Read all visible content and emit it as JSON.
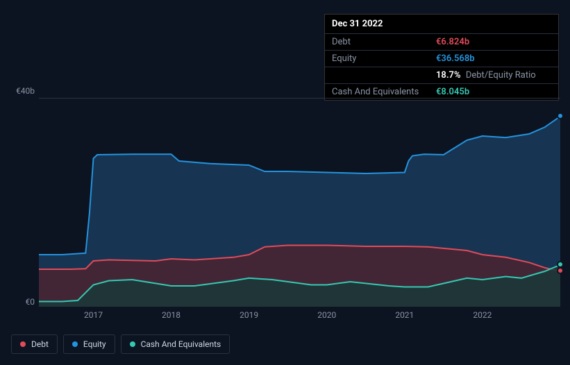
{
  "tooltip": {
    "date": "Dec 31 2022",
    "rows": [
      {
        "label": "Debt",
        "value": "€6.824b",
        "color": "#e24b5a"
      },
      {
        "label": "Equity",
        "value": "€36.568b",
        "color": "#2394df"
      },
      {
        "label": "",
        "value": "18.7%",
        "suffix": "Debt/Equity Ratio",
        "color": "#ffffff"
      },
      {
        "label": "Cash And Equivalents",
        "value": "€8.045b",
        "color": "#35c9b3"
      }
    ]
  },
  "chart": {
    "type": "area",
    "background": "#0d1421",
    "grid_color": "#2a3040",
    "text_color": "#8a94a6",
    "ylim": [
      0,
      40
    ],
    "y_ticks": [
      {
        "v": 40,
        "label": "€40b"
      },
      {
        "v": 0,
        "label": "€0"
      }
    ],
    "x_domain": [
      2016.3,
      2023.0
    ],
    "x_ticks": [
      2017,
      2018,
      2019,
      2020,
      2021,
      2022
    ],
    "series": [
      {
        "name": "Equity",
        "stroke": "#2394df",
        "fill": "#1a3a5a",
        "fill_opacity": 0.85,
        "points": [
          [
            2016.3,
            10.0
          ],
          [
            2016.6,
            10.0
          ],
          [
            2016.8,
            10.2
          ],
          [
            2016.9,
            10.3
          ],
          [
            2016.95,
            18.0
          ],
          [
            2017.0,
            28.5
          ],
          [
            2017.05,
            29.2
          ],
          [
            2017.5,
            29.3
          ],
          [
            2018.0,
            29.3
          ],
          [
            2018.1,
            28.0
          ],
          [
            2018.5,
            27.5
          ],
          [
            2019.0,
            27.2
          ],
          [
            2019.2,
            26.0
          ],
          [
            2019.5,
            26.0
          ],
          [
            2020.0,
            25.8
          ],
          [
            2020.5,
            25.6
          ],
          [
            2021.0,
            25.8
          ],
          [
            2021.05,
            28.0
          ],
          [
            2021.1,
            29.0
          ],
          [
            2021.25,
            29.3
          ],
          [
            2021.5,
            29.2
          ],
          [
            2021.8,
            32.0
          ],
          [
            2022.0,
            32.8
          ],
          [
            2022.3,
            32.5
          ],
          [
            2022.6,
            33.2
          ],
          [
            2022.8,
            34.5
          ],
          [
            2023.0,
            36.57
          ]
        ]
      },
      {
        "name": "Debt",
        "stroke": "#e24b5a",
        "fill": "#4a2530",
        "fill_opacity": 0.85,
        "points": [
          [
            2016.3,
            7.2
          ],
          [
            2016.7,
            7.2
          ],
          [
            2016.9,
            7.3
          ],
          [
            2017.0,
            8.8
          ],
          [
            2017.2,
            9.0
          ],
          [
            2017.8,
            8.8
          ],
          [
            2018.0,
            9.2
          ],
          [
            2018.3,
            9.0
          ],
          [
            2018.8,
            9.5
          ],
          [
            2019.0,
            10.0
          ],
          [
            2019.2,
            11.5
          ],
          [
            2019.5,
            11.8
          ],
          [
            2020.0,
            11.8
          ],
          [
            2020.5,
            11.6
          ],
          [
            2021.0,
            11.6
          ],
          [
            2021.3,
            11.5
          ],
          [
            2021.8,
            10.8
          ],
          [
            2022.0,
            10.0
          ],
          [
            2022.3,
            9.5
          ],
          [
            2022.6,
            8.5
          ],
          [
            2022.8,
            7.5
          ],
          [
            2023.0,
            6.82
          ]
        ]
      },
      {
        "name": "Cash And Equivalents",
        "stroke": "#35c9b3",
        "fill": "#1a3838",
        "fill_opacity": 0.85,
        "points": [
          [
            2016.3,
            1.0
          ],
          [
            2016.6,
            1.0
          ],
          [
            2016.8,
            1.2
          ],
          [
            2017.0,
            4.2
          ],
          [
            2017.2,
            5.0
          ],
          [
            2017.5,
            5.2
          ],
          [
            2018.0,
            4.0
          ],
          [
            2018.3,
            4.0
          ],
          [
            2018.8,
            5.0
          ],
          [
            2019.0,
            5.5
          ],
          [
            2019.3,
            5.2
          ],
          [
            2019.8,
            4.2
          ],
          [
            2020.0,
            4.2
          ],
          [
            2020.3,
            4.8
          ],
          [
            2020.8,
            4.0
          ],
          [
            2021.0,
            3.8
          ],
          [
            2021.3,
            3.8
          ],
          [
            2021.8,
            5.5
          ],
          [
            2022.0,
            5.2
          ],
          [
            2022.3,
            5.8
          ],
          [
            2022.5,
            5.5
          ],
          [
            2022.8,
            6.8
          ],
          [
            2023.0,
            8.05
          ]
        ]
      }
    ],
    "legend": [
      {
        "label": "Debt",
        "color": "#e24b5a"
      },
      {
        "label": "Equity",
        "color": "#2394df"
      },
      {
        "label": "Cash And Equivalents",
        "color": "#35c9b3"
      }
    ],
    "markers": [
      {
        "series": "Equity",
        "x": 2023.0,
        "y": 36.57,
        "color": "#2394df"
      },
      {
        "series": "Debt",
        "x": 2023.0,
        "y": 6.82,
        "color": "#e24b5a"
      },
      {
        "series": "Cash",
        "x": 2023.0,
        "y": 8.05,
        "color": "#35c9b3"
      }
    ]
  }
}
